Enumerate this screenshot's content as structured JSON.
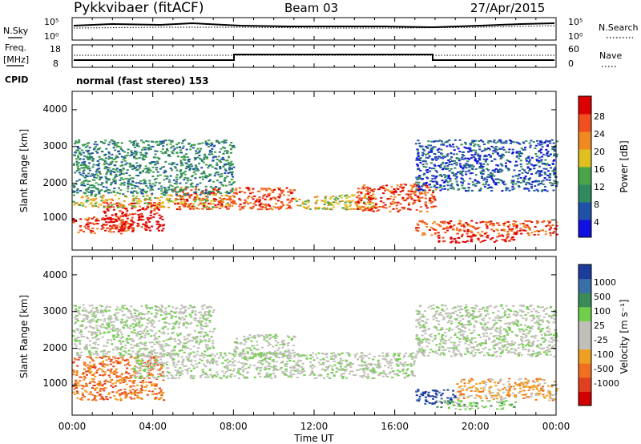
{
  "header": {
    "radar": "Pykkvibaer (fitACF)",
    "beam": "Beam 03",
    "date": "27/Apr/2015"
  },
  "noise_panel": {
    "left_label": "N.Sky",
    "right_label": "N.Search",
    "ticks": [
      "10^5",
      "10^0"
    ]
  },
  "freq_panel": {
    "left_label_1": "Freq.",
    "left_label_2": "[MHz]",
    "left_ticks": [
      "18",
      "8"
    ],
    "right_label": "Nave",
    "right_ticks": [
      "60",
      "0"
    ]
  },
  "cpid": {
    "label": "CPID",
    "text": "normal (fast stereo) 153"
  },
  "x_axis": {
    "label": "Time UT",
    "ticks": [
      "00:00",
      "04:00",
      "08:00",
      "12:00",
      "16:00",
      "20:00",
      "00:00"
    ]
  },
  "colors": {
    "power": [
      "#1010e0",
      "#2050a8",
      "#2f8a60",
      "#4aa54a",
      "#e0c020",
      "#f08a20",
      "#f05020",
      "#dd0000"
    ],
    "velocity": [
      "#1d3d9e",
      "#3a6ea8",
      "#3a8a5a",
      "#6fcf4a",
      "#c0c0b8",
      "#c0c0b8",
      "#f0a020",
      "#f07020",
      "#e04020",
      "#d00000"
    ]
  },
  "chart_data": [
    {
      "type": "heatmap",
      "title": "",
      "ylabel": "Slant Range [km]",
      "xlabel": "Time UT",
      "xlim": [
        0,
        24
      ],
      "ylim": [
        180,
        4500
      ],
      "yticks": [
        "1000",
        "2000",
        "3000",
        "4000"
      ],
      "colorbar_label": "Power [dB]",
      "colorbar_ticks": [
        "4",
        "8",
        "12",
        "16",
        "20",
        "24",
        "28"
      ],
      "scatter_bands": [
        {
          "t_start": 0.0,
          "t_end": 3.0,
          "r_low": 650,
          "r_high": 1100,
          "level": 6
        },
        {
          "t_start": 1.5,
          "t_end": 4.5,
          "r_low": 700,
          "r_high": 1500,
          "level": 7
        },
        {
          "t_start": 0.0,
          "t_end": 8.0,
          "r_low": 1350,
          "r_high": 1700,
          "level": 4
        },
        {
          "t_start": 5.0,
          "t_end": 11.0,
          "r_low": 1300,
          "r_high": 1900,
          "level": 6
        },
        {
          "t_start": 11.0,
          "t_end": 15.0,
          "r_low": 1300,
          "r_high": 1700,
          "level": 4
        },
        {
          "t_start": 14.0,
          "t_end": 18.0,
          "r_low": 1250,
          "r_high": 2000,
          "level": 6
        },
        {
          "t_start": 17.0,
          "t_end": 24.0,
          "r_low": 600,
          "r_high": 1000,
          "level": 6
        },
        {
          "t_start": 18.0,
          "t_end": 22.0,
          "r_low": 400,
          "r_high": 600,
          "level": 7
        },
        {
          "t_start": 0.0,
          "t_end": 8.0,
          "r_low": 1700,
          "r_high": 3200,
          "level": 2
        },
        {
          "t_start": 17.0,
          "t_end": 24.0,
          "r_low": 1800,
          "r_high": 3200,
          "level": 1
        }
      ]
    },
    {
      "type": "heatmap",
      "title": "",
      "ylabel": "Slant Range [km]",
      "xlabel": "Time UT",
      "xlim": [
        0,
        24
      ],
      "ylim": [
        180,
        4500
      ],
      "yticks": [
        "1000",
        "2000",
        "3000",
        "4000"
      ],
      "colorbar_label": "Velocity [m s^-1]",
      "colorbar_ticks": [
        "1000",
        "500",
        "100",
        "25",
        "-25",
        "-100",
        "-500",
        "-1000"
      ],
      "scatter_bands": [
        {
          "t_start": 0.0,
          "t_end": 4.5,
          "r_low": 600,
          "r_high": 1800,
          "level": 7
        },
        {
          "t_start": 3.0,
          "t_end": 17.0,
          "r_low": 1200,
          "r_high": 1900,
          "level": 4
        },
        {
          "t_start": 8.0,
          "t_end": 11.0,
          "r_low": 1800,
          "r_high": 2400,
          "level": 4
        },
        {
          "t_start": 17.0,
          "t_end": 19.0,
          "r_low": 500,
          "r_high": 900,
          "level": 0
        },
        {
          "t_start": 18.0,
          "t_end": 22.0,
          "r_low": 350,
          "r_high": 600,
          "level": 3
        },
        {
          "t_start": 19.0,
          "t_end": 24.0,
          "r_low": 600,
          "r_high": 1200,
          "level": 6
        },
        {
          "t_start": 0.0,
          "t_end": 7.0,
          "r_low": 1800,
          "r_high": 3200,
          "level": 4
        },
        {
          "t_start": 17.0,
          "t_end": 24.0,
          "r_low": 1800,
          "r_high": 3200,
          "level": 4
        }
      ]
    }
  ]
}
